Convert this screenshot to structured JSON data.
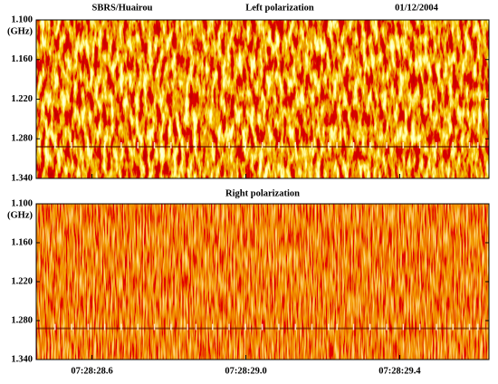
{
  "chart_data": [
    {
      "type": "spectrogram",
      "station": "SBRS/Huairou",
      "title": "Left polarization",
      "date": "01/12/2004",
      "y_unit": "(GHz)",
      "ylim": [
        1.1,
        1.34
      ],
      "yticks": [
        {
          "value": 1.1,
          "label": "1.100"
        },
        {
          "value": 1.16,
          "label": "1.160"
        },
        {
          "value": 1.22,
          "label": "1.220"
        },
        {
          "value": 1.28,
          "label": "1.280"
        },
        {
          "value": 1.34,
          "label": "1.340"
        }
      ]
    },
    {
      "type": "spectrogram",
      "title": "Right polarization",
      "y_unit": "(GHz)",
      "ylim": [
        1.1,
        1.34
      ],
      "yticks": [
        {
          "value": 1.1,
          "label": "1.100"
        },
        {
          "value": 1.16,
          "label": "1.160"
        },
        {
          "value": 1.22,
          "label": "1.220"
        },
        {
          "value": 1.28,
          "label": "1.280"
        },
        {
          "value": 1.34,
          "label": "1.340"
        }
      ],
      "xlim": [
        26908.455,
        26909.632
      ],
      "xticks": [
        {
          "value": 26908.6,
          "label": "07:28:28.6"
        },
        {
          "value": 26909.0,
          "label": "07:28:29.0"
        },
        {
          "value": 26909.4,
          "label": "07:28:29.4"
        }
      ]
    }
  ]
}
